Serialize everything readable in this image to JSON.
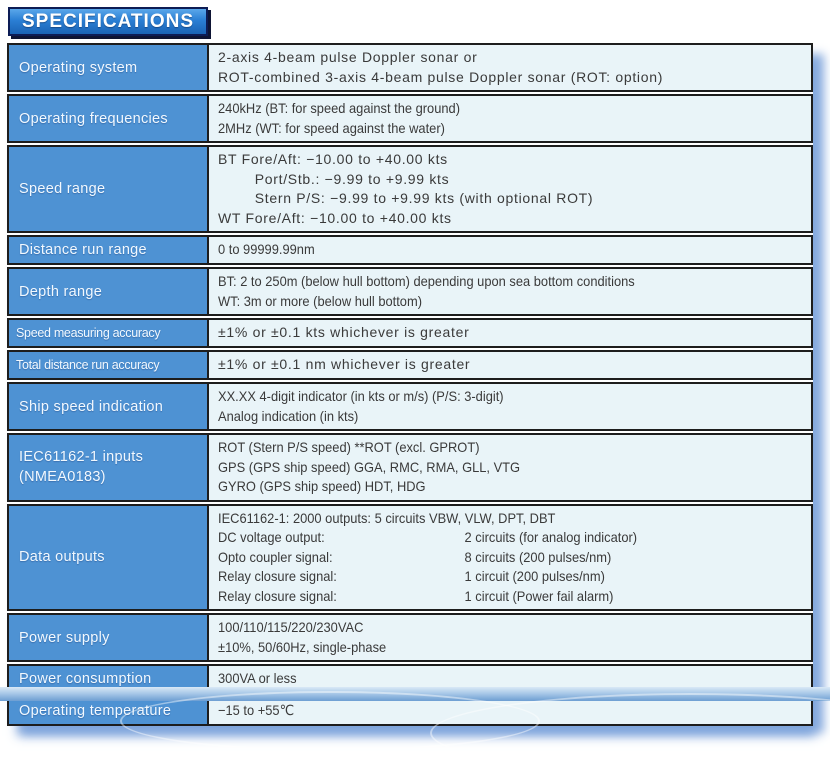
{
  "title": "SPECIFICATIONS",
  "colors": {
    "label_bg": "#4e92d3",
    "value_bg": "#e9f4f8",
    "border": "#1d1d1d",
    "title_blue": "#2b7fd4",
    "shadow_blue": "#7ba2db"
  },
  "table": {
    "rows": [
      {
        "label": "Operating system",
        "fmt": "air",
        "lines": [
          "2-axis 4-beam pulse Doppler sonar or",
          "ROT-combined 3-axis 4-beam pulse Doppler sonar (ROT: option)"
        ]
      },
      {
        "label": "Operating frequencies",
        "fmt": "cond",
        "lines": [
          "240kHz (BT: for speed against the ground)",
          "2MHz (WT: for speed against the water)"
        ]
      },
      {
        "label": "Speed range",
        "fmt": "air",
        "lines": [
          "BT Fore/Aft: −10.00 to +40.00 kts",
          "        Port/Stb.: −9.99 to +9.99 kts",
          "        Stern P/S: −9.99 to +9.99 kts (with optional ROT)",
          "WT Fore/Aft: −10.00 to +40.00 kts"
        ]
      },
      {
        "label": "Distance run range",
        "fmt": "cond",
        "lines": [
          "0 to 99999.99nm"
        ]
      },
      {
        "label": "Depth range",
        "fmt": "cond",
        "lines": [
          "BT: 2 to 250m (below hull bottom) depending upon sea bottom conditions",
          "WT: 3m or more (below hull bottom)"
        ]
      },
      {
        "label": "Speed measuring accuracy",
        "label_small": true,
        "fmt": "air",
        "lines": [
          "±1% or ±0.1 kts whichever is greater"
        ]
      },
      {
        "label": "Total distance run accuracy",
        "label_small": true,
        "fmt": "air",
        "lines": [
          "±1% or ±0.1 nm whichever is greater"
        ]
      },
      {
        "label": "Ship speed indication",
        "fmt": "cond",
        "lines": [
          "XX.XX 4-digit indicator (in kts or m/s) (P/S: 3-digit)",
          "Analog indication (in kts)"
        ]
      },
      {
        "label": "IEC61162-1 inputs (NMEA0183)",
        "fmt": "cond",
        "lines": [
          "ROT (Stern P/S speed) **ROT (excl. GPROT)",
          "GPS (GPS ship speed) GGA, RMC, RMA, GLL, VTG",
          "GYRO (GPS ship speed) HDT, HDG"
        ]
      },
      {
        "label": "Data outputs",
        "fmt": "cond",
        "lines": [
          "IEC61162-1: 2000 outputs: 5 circuits VBW, VLW, DPT, DBT",
          {
            "c1": "DC voltage output:",
            "c2": "2 circuits (for analog indicator)"
          },
          {
            "c1": "Opto coupler signal:",
            "c2": "8 circuits (200 pulses/nm)"
          },
          {
            "c1": "Relay closure signal:",
            "c2": "1 circuit (200 pulses/nm)"
          },
          {
            "c1": "Relay closure signal:",
            "c2": "1 circuit (Power fail alarm)"
          }
        ]
      },
      {
        "label": "Power supply",
        "fmt": "cond",
        "lines": [
          "100/110/115/220/230VAC",
          "±10%, 50/60Hz, single-phase"
        ]
      },
      {
        "label": "Power consumption",
        "fmt": "cond",
        "lines": [
          "300VA or less"
        ]
      },
      {
        "label": "Operating temperature",
        "fmt": "cond",
        "lines": [
          "−15 to +55℃"
        ]
      }
    ]
  }
}
